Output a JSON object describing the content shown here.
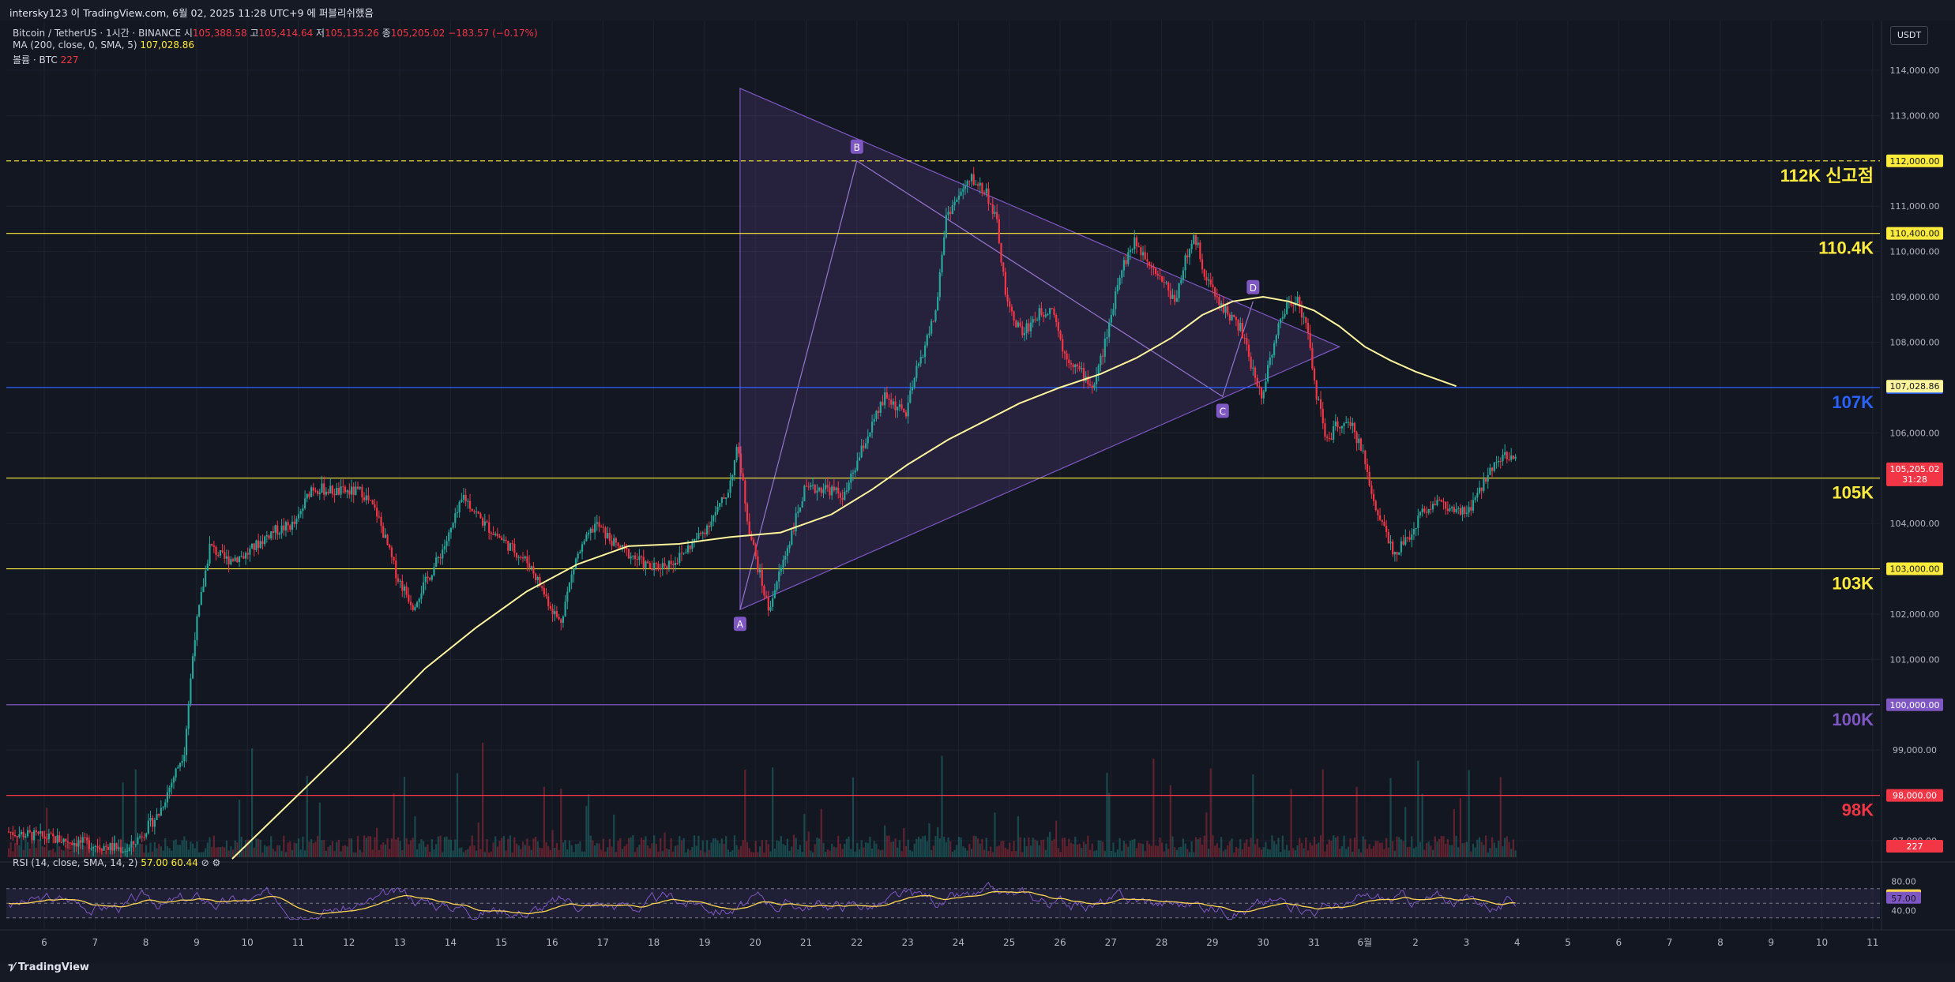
{
  "header": {
    "title": "intersky123 이 TradingView.com, 6월 02, 2025 11:28 UTC+9 에 퍼블리쉬했음"
  },
  "legend": {
    "symbol": "Bitcoin / TetherUS · 1시간 · BINANCE",
    "open_label": "시",
    "open": "105,388.58",
    "high_label": "고",
    "high": "105,414.64",
    "low_label": "저",
    "low": "105,135.26",
    "close_label": "종",
    "close": "105,205.02",
    "change": "−183.57 (−0.17%)",
    "ma_label": "MA (200, close, 0, SMA, 5)",
    "ma_value": "107,028.86",
    "volume_label": "볼륨 · BTC",
    "volume_value": "227"
  },
  "rsi": {
    "label": "RSI (14, close, SMA, 14, 2)",
    "value1": "57.00",
    "value2": "60.44",
    "ticks": [
      "80.00",
      "40.00"
    ]
  },
  "currency_button": "USDT",
  "footer": {
    "logo": "TradingView"
  },
  "colors": {
    "background": "#131722",
    "up": "#26a69a",
    "down": "#f23645",
    "ma": "#fff59d",
    "triangle": "#7e57c2",
    "rsi": "#7e57c2",
    "rsi_ma": "#ffd54f"
  },
  "chart_data": {
    "type": "candlestick",
    "symbol": "BTCUSDT",
    "timeframe": "1h",
    "y_axis_ticks": [
      "114,000.00",
      "113,000.00",
      "112,000.00",
      "111,000.00",
      "110,000.00",
      "109,000.00",
      "108,000.00",
      "107,000.00",
      "106,000.00",
      "105,000.00",
      "104,000.00",
      "103,000.00",
      "102,000.00",
      "101,000.00",
      "100,000.00",
      "99,000.00",
      "98,000.00",
      "97,000.00"
    ],
    "ylim": [
      96600,
      114400
    ],
    "x_axis_ticks": [
      "6",
      "7",
      "8",
      "9",
      "10",
      "11",
      "12",
      "13",
      "14",
      "15",
      "16",
      "17",
      "18",
      "19",
      "20",
      "21",
      "22",
      "23",
      "24",
      "25",
      "26",
      "27",
      "28",
      "29",
      "30",
      "31",
      "6월",
      "2",
      "3",
      "4",
      "5",
      "6",
      "7",
      "8",
      "9",
      "10",
      "11"
    ],
    "x_tick_day_index": [
      0,
      1,
      2,
      3,
      4,
      5,
      6,
      7,
      8,
      9,
      10,
      11,
      12,
      13,
      14,
      15,
      16,
      17,
      18,
      19,
      20,
      21,
      22,
      23,
      24,
      25,
      26,
      27,
      28,
      29,
      30,
      31,
      32,
      33,
      34,
      35,
      36
    ],
    "price_path": [
      [
        -0.7,
        97200
      ],
      [
        1.7,
        96800
      ],
      [
        2.3,
        97600
      ],
      [
        2.8,
        99000
      ],
      [
        3.0,
        101500
      ],
      [
        3.3,
        103500
      ],
      [
        3.6,
        103200
      ],
      [
        4.0,
        103300
      ],
      [
        4.5,
        103800
      ],
      [
        5.0,
        104000
      ],
      [
        5.3,
        104800
      ],
      [
        5.8,
        104700
      ],
      [
        6.3,
        104700
      ],
      [
        6.6,
        104200
      ],
      [
        7.0,
        102800
      ],
      [
        7.3,
        102200
      ],
      [
        7.7,
        103000
      ],
      [
        8.0,
        103700
      ],
      [
        8.3,
        104600
      ],
      [
        8.7,
        104000
      ],
      [
        9.2,
        103500
      ],
      [
        9.6,
        103100
      ],
      [
        10.0,
        102200
      ],
      [
        10.2,
        101800
      ],
      [
        10.5,
        103200
      ],
      [
        10.9,
        104000
      ],
      [
        11.3,
        103500
      ],
      [
        11.6,
        103300
      ],
      [
        12.0,
        103000
      ],
      [
        12.5,
        103200
      ],
      [
        13.0,
        103800
      ],
      [
        13.3,
        104300
      ],
      [
        13.5,
        104700
      ],
      [
        13.7,
        105700
      ],
      [
        13.9,
        104000
      ],
      [
        14.1,
        103000
      ],
      [
        14.3,
        102100
      ],
      [
        14.6,
        103200
      ],
      [
        15.0,
        104700
      ],
      [
        15.4,
        104800
      ],
      [
        15.8,
        104600
      ],
      [
        16.2,
        105800
      ],
      [
        16.6,
        106800
      ],
      [
        17.0,
        106400
      ],
      [
        17.2,
        107300
      ],
      [
        17.6,
        108700
      ],
      [
        17.8,
        110800
      ],
      [
        18.1,
        111300
      ],
      [
        18.3,
        111600
      ],
      [
        18.6,
        111300
      ],
      [
        18.8,
        110600
      ],
      [
        19.0,
        108800
      ],
      [
        19.3,
        108200
      ],
      [
        19.6,
        108600
      ],
      [
        19.9,
        108800
      ],
      [
        20.1,
        107800
      ],
      [
        20.4,
        107400
      ],
      [
        20.7,
        107000
      ],
      [
        21.0,
        108300
      ],
      [
        21.2,
        109500
      ],
      [
        21.5,
        110200
      ],
      [
        21.8,
        109800
      ],
      [
        22.1,
        109300
      ],
      [
        22.3,
        108900
      ],
      [
        22.5,
        109800
      ],
      [
        22.7,
        110300
      ],
      [
        22.9,
        109500
      ],
      [
        23.1,
        109000
      ],
      [
        23.3,
        108700
      ],
      [
        23.6,
        108300
      ],
      [
        23.8,
        107500
      ],
      [
        24.0,
        106800
      ],
      [
        24.3,
        108200
      ],
      [
        24.5,
        108800
      ],
      [
        24.7,
        109000
      ],
      [
        24.9,
        108300
      ],
      [
        25.1,
        106800
      ],
      [
        25.3,
        105800
      ],
      [
        25.5,
        106200
      ],
      [
        25.8,
        106100
      ],
      [
        26.0,
        105600
      ],
      [
        26.2,
        104500
      ],
      [
        26.4,
        104000
      ],
      [
        26.6,
        103400
      ],
      [
        26.8,
        103500
      ],
      [
        27.0,
        103900
      ],
      [
        27.2,
        104300
      ],
      [
        27.5,
        104500
      ],
      [
        27.7,
        104300
      ],
      [
        27.9,
        104200
      ],
      [
        28.1,
        104300
      ],
      [
        28.3,
        104700
      ],
      [
        28.6,
        105400
      ],
      [
        28.8,
        105500
      ],
      [
        29.0,
        105400
      ]
    ],
    "ma_200": [
      [
        3.7,
        96600
      ],
      [
        6.0,
        99100
      ],
      [
        7.5,
        100800
      ],
      [
        8.5,
        101700
      ],
      [
        9.5,
        102500
      ],
      [
        10.5,
        103100
      ],
      [
        11.5,
        103500
      ],
      [
        12.5,
        103550
      ],
      [
        13.5,
        103700
      ],
      [
        14.5,
        103800
      ],
      [
        15.5,
        104200
      ],
      [
        16.3,
        104750
      ],
      [
        17.0,
        105300
      ],
      [
        17.8,
        105850
      ],
      [
        18.5,
        106250
      ],
      [
        19.2,
        106650
      ],
      [
        20.0,
        107000
      ],
      [
        20.8,
        107300
      ],
      [
        21.5,
        107650
      ],
      [
        22.2,
        108100
      ],
      [
        22.8,
        108600
      ],
      [
        23.4,
        108900
      ],
      [
        24.0,
        109000
      ],
      [
        24.5,
        108900
      ],
      [
        25.0,
        108700
      ],
      [
        25.5,
        108350
      ],
      [
        26.0,
        107900
      ],
      [
        26.5,
        107600
      ],
      [
        27.0,
        107350
      ],
      [
        27.5,
        107150
      ],
      [
        27.8,
        107030
      ]
    ],
    "horizontal_levels": [
      {
        "price": 112000,
        "label": "112K 신고점",
        "axis_label": "112,000.00",
        "color": "#ffeb3b",
        "style": "dashed"
      },
      {
        "price": 110400,
        "label": "110.4K",
        "axis_label": "110,400.00",
        "color": "#ffeb3b",
        "style": "solid"
      },
      {
        "price": 107000,
        "label": "107K",
        "axis_label": "107,000.00",
        "color": "#2962ff",
        "style": "solid"
      },
      {
        "price": 105000,
        "label": "105K",
        "axis_label": "105,000.00",
        "color": "#ffeb3b",
        "style": "solid"
      },
      {
        "price": 103000,
        "label": "103K",
        "axis_label": "103,000.00",
        "color": "#ffeb3b",
        "style": "solid"
      },
      {
        "price": 100000,
        "label": "100K",
        "axis_label": "100,000.00",
        "color": "#7e57c2",
        "style": "solid"
      },
      {
        "price": 98000,
        "label": "98K",
        "axis_label": "98,000.00",
        "color": "#f23645",
        "style": "solid"
      }
    ],
    "price_tags": [
      {
        "price": 107028.86,
        "text": "107,028.86",
        "bg": "#fff59d",
        "fg": "#131722"
      },
      {
        "price": 105205.02,
        "text": "105,205.02",
        "sub": "31:28",
        "bg": "#f23645",
        "fg": "#ffffff"
      },
      {
        "volume": 227,
        "text": "227",
        "bg": "#f23645",
        "fg": "#ffffff"
      }
    ],
    "pattern_points": [
      {
        "label": "A",
        "day": 13.7,
        "price": 102100
      },
      {
        "label": "B",
        "day": 16.0,
        "price": 112000
      },
      {
        "label": "C",
        "day": 23.2,
        "price": 106800
      },
      {
        "label": "D",
        "day": 23.8,
        "price": 108900
      }
    ],
    "triangle": {
      "apex": [
        25.5,
        107900
      ],
      "top_left": [
        13.7,
        113600
      ],
      "bottom_left": [
        13.7,
        102100
      ]
    },
    "rsi_range": [
      20,
      100
    ]
  }
}
